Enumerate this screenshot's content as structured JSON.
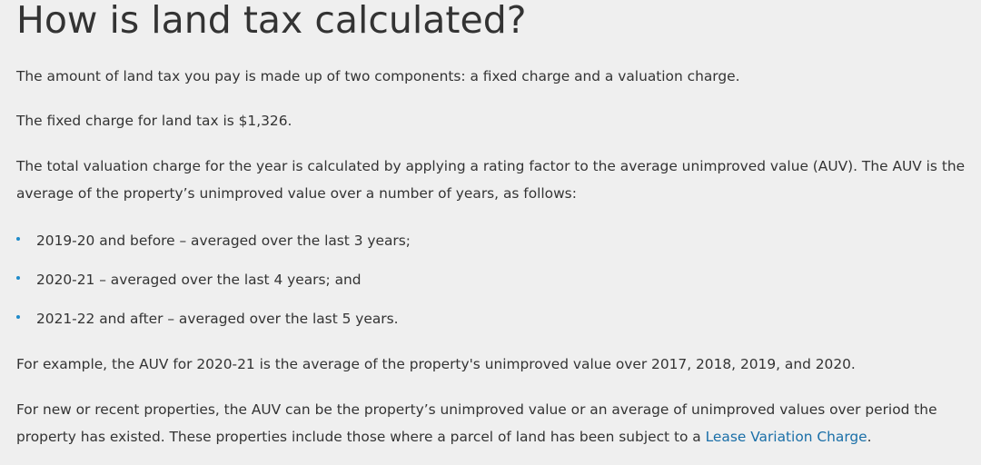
{
  "heading": "How is land tax calculated?",
  "paragraphs": {
    "intro": "The amount of land tax you pay is made up of two components: a fixed charge and a valuation charge.",
    "fixed_charge": "The fixed charge for land tax is $1,326.",
    "valuation_line1": "The total valuation charge for the year is calculated by applying a rating factor to the average unimproved value (AUV). The AUV is the",
    "valuation_line2": "average of the property’s unimproved value over a number of years, as follows:",
    "example": "For example, the AUV for 2020-21 is the average of the property's unimproved value over 2017, 2018, 2019, and 2020.",
    "recent_line1": "For new or recent properties, the AUV can be the property’s unimproved value or an average of unimproved values over period the",
    "recent_line2_before_link": "property has existed. These properties include those where a parcel of land has been subject to a ",
    "recent_link": "Lease Variation Charge",
    "recent_after_link": "."
  },
  "bullets": [
    "2019-20 and before – averaged over the last 3 years;",
    "2020-21 – averaged over the last 4 years; and",
    "2021-22 and after – averaged over the last 5 years."
  ],
  "colors": {
    "background": "#efefef",
    "text": "#333333",
    "link": "#1a6fa8",
    "bullet": "#1f8bc9"
  }
}
